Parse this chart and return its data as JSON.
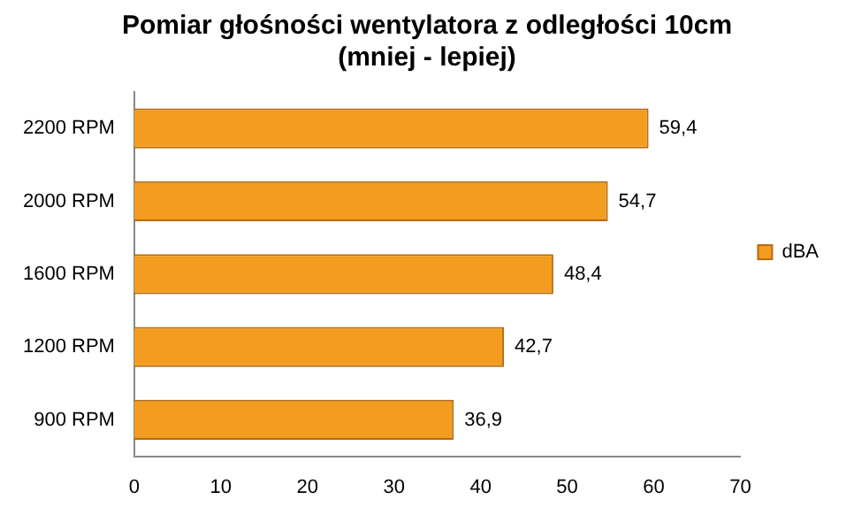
{
  "chart_data": {
    "type": "bar",
    "orientation": "horizontal",
    "title": "Pomiar głośności wentylatora z odległości 10cm",
    "subtitle": "(mniej - lepiej)",
    "categories": [
      "2200 RPM",
      "2000 RPM",
      "1600 RPM",
      "1200 RPM",
      "900 RPM"
    ],
    "series": [
      {
        "name": "dBA",
        "color": "#f39c1f",
        "values": [
          59.4,
          54.7,
          48.4,
          42.7,
          36.9
        ],
        "value_labels": [
          "59,4",
          "54,7",
          "48,4",
          "42,7",
          "36,9"
        ]
      }
    ],
    "xlim": [
      0,
      70
    ],
    "xticks": [
      0,
      10,
      20,
      30,
      40,
      50,
      60,
      70
    ],
    "grid": false,
    "legend": "right"
  }
}
